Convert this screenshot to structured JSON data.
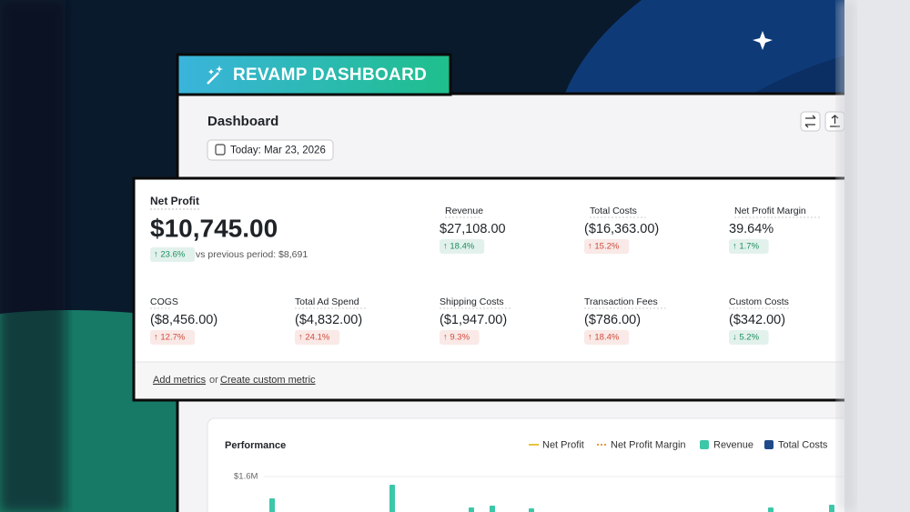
{
  "banner": {
    "title": "REVAMP DASHBOARD"
  },
  "header": {
    "title": "Dashboard",
    "date_button": "Today: Mar 23, 2026"
  },
  "metrics_card": {
    "hero": {
      "label": "Net Profit",
      "value": "$10,745.00",
      "change": "↑ 23.6%",
      "color": "#1a8f5f",
      "comparison": "vs previous period: $8,691"
    },
    "metrics": [
      {
        "label": "Revenue",
        "value": "$27,108.00",
        "change": "↑ 18.4%",
        "color": "#1a8f5f"
      },
      {
        "label": "Total Costs",
        "value": "($16,363.00)",
        "change": "↑ 15.2%",
        "color": "#d14b3a"
      },
      {
        "label": "Net Profit Margin",
        "value": "39.64%",
        "change": "↑ 1.7%",
        "color": "#1a8f5f"
      },
      {
        "label": "COGS",
        "value": "($8,456.00)",
        "change": "↑ 12.7%",
        "color": "#d14b3a"
      },
      {
        "label": "Total Ad Spend",
        "value": "($4,832.00)",
        "change": "↑ 24.1%",
        "color": "#d14b3a"
      },
      {
        "label": "Shipping Costs",
        "value": "($1,947.00)",
        "change": "↑ 9.3%",
        "color": "#d14b3a"
      },
      {
        "label": "Transaction Fees",
        "value": "($786.00)",
        "change": "↑ 18.4%",
        "color": "#d14b3a"
      },
      {
        "label": "Custom Costs",
        "value": "($342.00)",
        "change": "↓ 5.2%",
        "color": "#1a8f5f"
      }
    ],
    "footer": {
      "add_link": "Add metrics",
      "separator": "or",
      "custom_link": "Create custom metric"
    }
  },
  "performance": {
    "title": "Performance",
    "axis_label": "$1.6M",
    "legend": [
      {
        "name": "Net Profit",
        "color": "#e8c43a",
        "style": "line"
      },
      {
        "name": "Net Profit Margin",
        "color": "#e89a3a",
        "style": "dotted"
      },
      {
        "name": "Revenue",
        "color": "#3cc7a8",
        "style": "square"
      },
      {
        "name": "Total Costs",
        "color": "#1f4a8a",
        "style": "square"
      }
    ]
  }
}
